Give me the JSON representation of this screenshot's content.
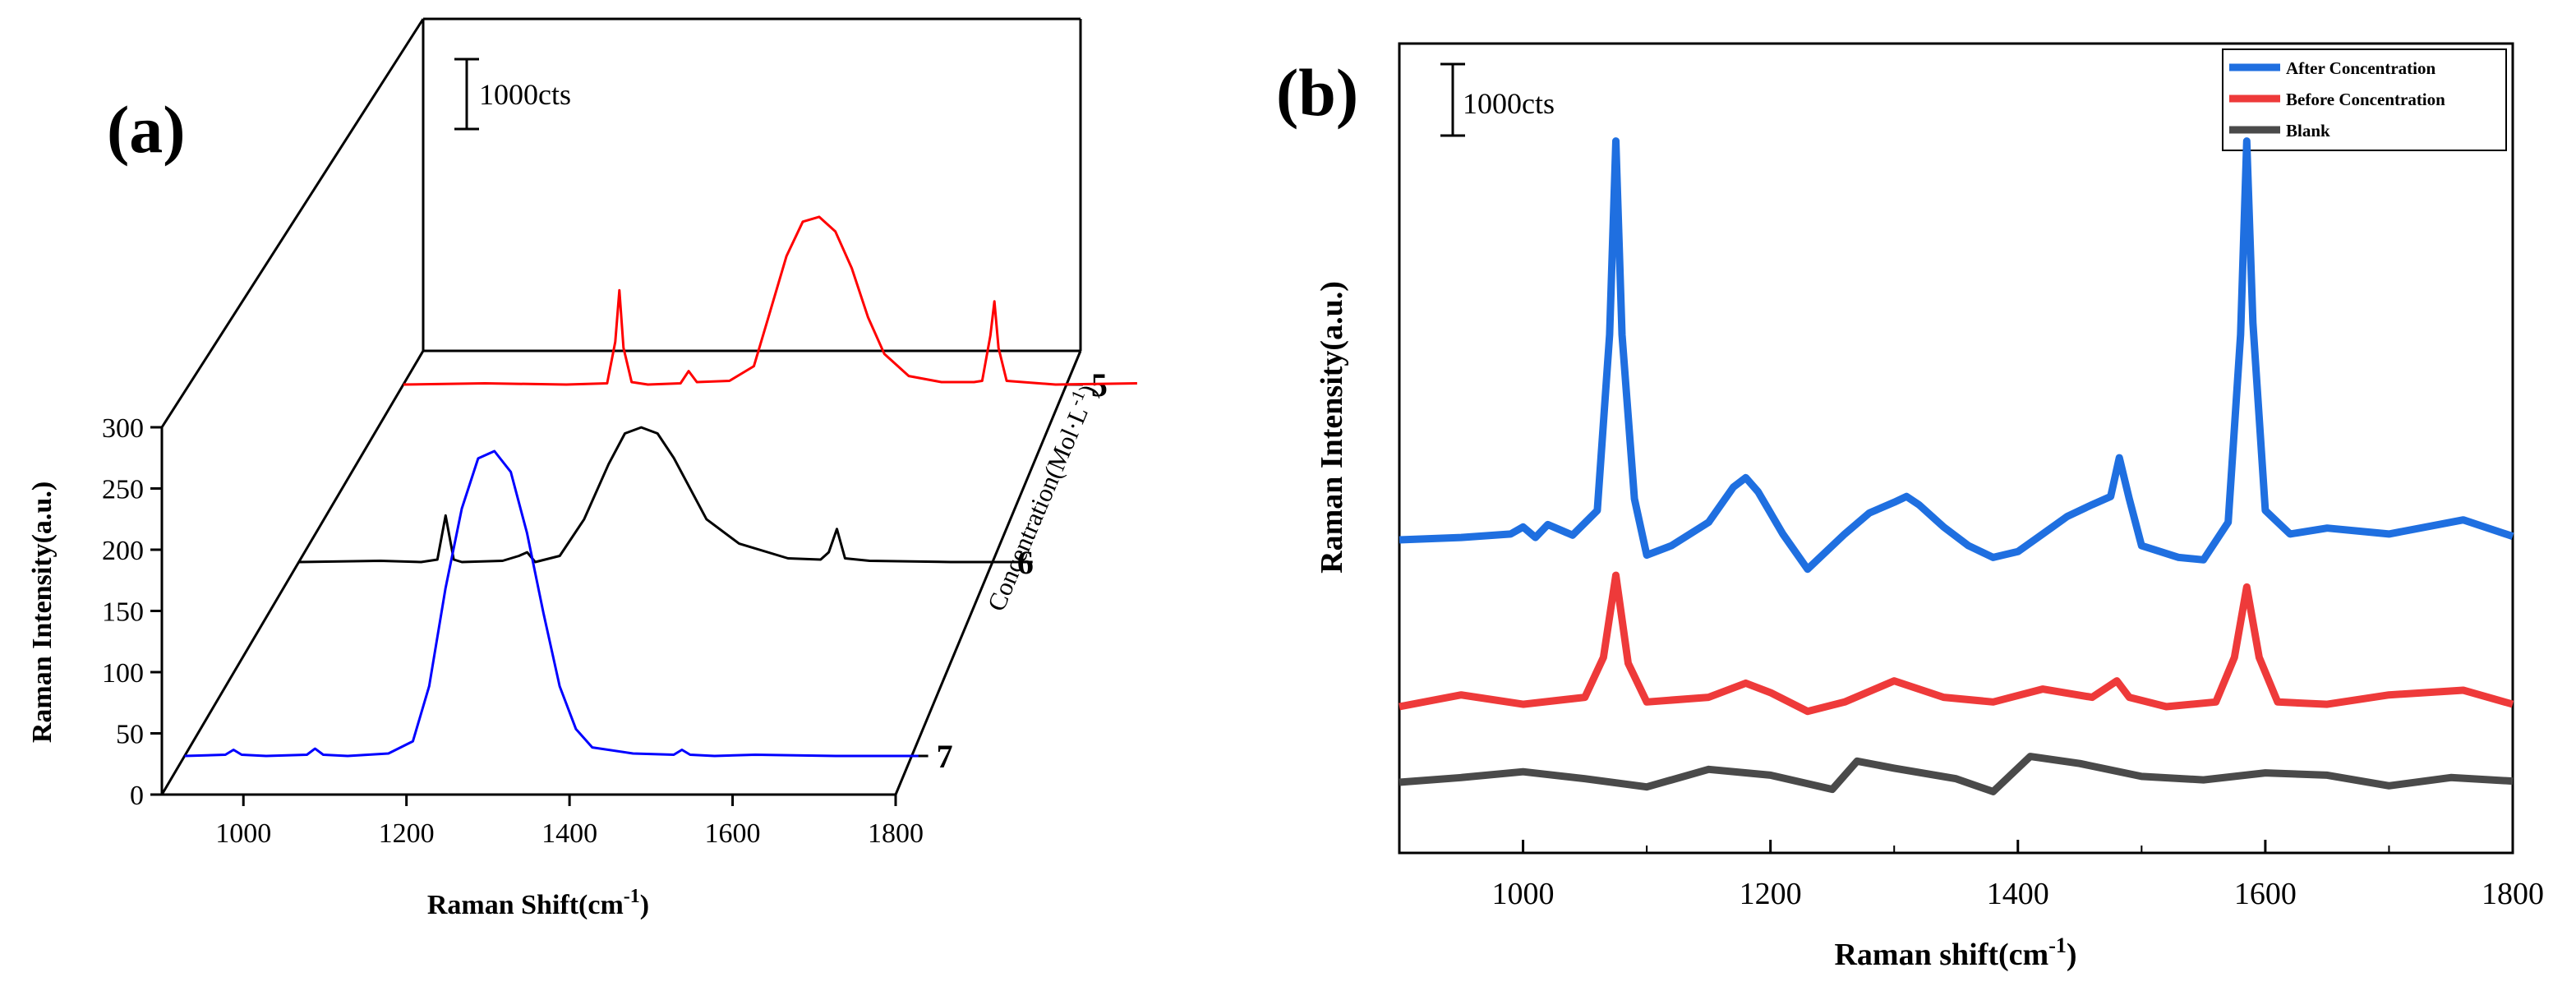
{
  "panel_a": {
    "label": "(a)",
    "scale_bar": "1000cts",
    "ylabel": "Raman Intensity(a.u.)",
    "xlabel_base": "Raman Shift(cm",
    "xlabel_sup": "-1",
    "xlabel_end": ")",
    "zlabel_base": "Concentration(Mol·L",
    "zlabel_sup": "-1",
    "zlabel_end": ")"
  },
  "panel_b": {
    "label": "(b)",
    "scale_bar": "1000cts",
    "ylabel": "Raman Intensity(a.u.)",
    "xlabel_base": "Raman shift(cm",
    "xlabel_sup": "-1",
    "xlabel_end": ")"
  },
  "chart_data": [
    {
      "type": "line",
      "view": "3d-waterfall",
      "x_ticks": [
        1000,
        1200,
        1400,
        1600,
        1800
      ],
      "xlim": [
        900,
        1800
      ],
      "y_ticks": [
        0,
        50,
        100,
        150,
        200,
        250,
        300
      ],
      "ylim": [
        0,
        300
      ],
      "depth_ticks": [
        "5",
        "6",
        "7"
      ],
      "series": [
        {
          "depth": "5",
          "color": "#ff0000",
          "baseline": 25,
          "x": [
            900,
            1000,
            1100,
            1150,
            1160,
            1165,
            1170,
            1180,
            1200,
            1240,
            1250,
            1260,
            1300,
            1330,
            1350,
            1370,
            1390,
            1410,
            1430,
            1450,
            1470,
            1490,
            1520,
            1560,
            1600,
            1610,
            1620,
            1625,
            1630,
            1640,
            1700,
            1800
          ],
          "y": [
            25,
            26,
            25,
            26,
            60,
            102,
            55,
            27,
            25,
            26,
            36,
            27,
            28,
            40,
            85,
            130,
            158,
            162,
            150,
            120,
            80,
            50,
            32,
            27,
            27,
            28,
            65,
            93,
            55,
            28,
            25,
            26
          ]
        },
        {
          "depth": "6",
          "color": "#000000",
          "baseline": 195,
          "x": [
            900,
            1000,
            1050,
            1070,
            1080,
            1090,
            1100,
            1150,
            1170,
            1180,
            1190,
            1220,
            1250,
            1280,
            1300,
            1320,
            1340,
            1360,
            1380,
            1400,
            1440,
            1500,
            1540,
            1550,
            1560,
            1570,
            1600,
            1700,
            1800
          ],
          "y": [
            195,
            196,
            195,
            197,
            233,
            197,
            195,
            196,
            200,
            203,
            195,
            200,
            230,
            275,
            300,
            305,
            300,
            280,
            255,
            230,
            210,
            198,
            197,
            203,
            222,
            198,
            196,
            195,
            195
          ]
        },
        {
          "depth": "7",
          "color": "#0000ff",
          "baseline": 33,
          "x": [
            900,
            950,
            960,
            970,
            1000,
            1050,
            1060,
            1070,
            1100,
            1150,
            1180,
            1200,
            1220,
            1240,
            1260,
            1280,
            1300,
            1320,
            1340,
            1360,
            1380,
            1400,
            1450,
            1500,
            1510,
            1520,
            1550,
            1600,
            1700,
            1800
          ],
          "y": [
            33,
            34,
            38,
            34,
            33,
            34,
            39,
            34,
            33,
            35,
            45,
            90,
            170,
            235,
            276,
            282,
            265,
            215,
            150,
            90,
            55,
            40,
            35,
            34,
            38,
            34,
            33,
            34,
            33,
            33
          ]
        }
      ]
    },
    {
      "type": "line",
      "xlim": [
        900,
        1800
      ],
      "x_ticks": [
        1000,
        1200,
        1400,
        1600,
        1800
      ],
      "legend_position": "top-right",
      "series": [
        {
          "name": "After Concentration",
          "color": "#1f6fe0",
          "baseline": 2150,
          "x": [
            900,
            950,
            990,
            1000,
            1010,
            1020,
            1040,
            1060,
            1070,
            1075,
            1080,
            1090,
            1100,
            1120,
            1150,
            1170,
            1180,
            1190,
            1210,
            1230,
            1260,
            1280,
            1300,
            1310,
            1320,
            1340,
            1360,
            1380,
            1400,
            1420,
            1440,
            1460,
            1475,
            1482,
            1490,
            1500,
            1530,
            1550,
            1570,
            1580,
            1585,
            1590,
            1600,
            1620,
            1650,
            1700,
            1760,
            1800
          ],
          "y": [
            2150,
            2170,
            2200,
            2260,
            2170,
            2280,
            2190,
            2400,
            3900,
            5550,
            3900,
            2500,
            2020,
            2100,
            2300,
            2600,
            2680,
            2560,
            2200,
            1900,
            2200,
            2380,
            2470,
            2520,
            2450,
            2260,
            2100,
            2000,
            2050,
            2200,
            2350,
            2450,
            2520,
            2850,
            2500,
            2100,
            2000,
            1980,
            2300,
            3900,
            5550,
            4000,
            2400,
            2200,
            2250,
            2200,
            2320,
            2180
          ]
        },
        {
          "name": "Before Concentration",
          "color": "#ee3a3a",
          "baseline": 680,
          "x": [
            900,
            950,
            1000,
            1050,
            1065,
            1075,
            1085,
            1100,
            1150,
            1180,
            1200,
            1230,
            1260,
            1300,
            1340,
            1380,
            1420,
            1460,
            1480,
            1490,
            1520,
            1560,
            1575,
            1585,
            1595,
            1610,
            1650,
            1700,
            1760,
            1800
          ],
          "y": [
            680,
            780,
            700,
            760,
            1100,
            1800,
            1050,
            720,
            760,
            880,
            800,
            640,
            720,
            900,
            760,
            720,
            830,
            760,
            900,
            760,
            680,
            720,
            1100,
            1700,
            1100,
            720,
            700,
            780,
            820,
            700
          ]
        },
        {
          "name": "Blank",
          "color": "#4a4a4a",
          "baseline": 0,
          "x": [
            900,
            950,
            1000,
            1050,
            1100,
            1150,
            1200,
            1250,
            1270,
            1300,
            1350,
            1380,
            1410,
            1450,
            1500,
            1550,
            1600,
            1650,
            1700,
            1750,
            1800
          ],
          "y": [
            0,
            40,
            90,
            30,
            -40,
            110,
            60,
            -60,
            180,
            120,
            30,
            -80,
            220,
            160,
            50,
            20,
            80,
            60,
            -30,
            40,
            10
          ]
        }
      ]
    }
  ]
}
